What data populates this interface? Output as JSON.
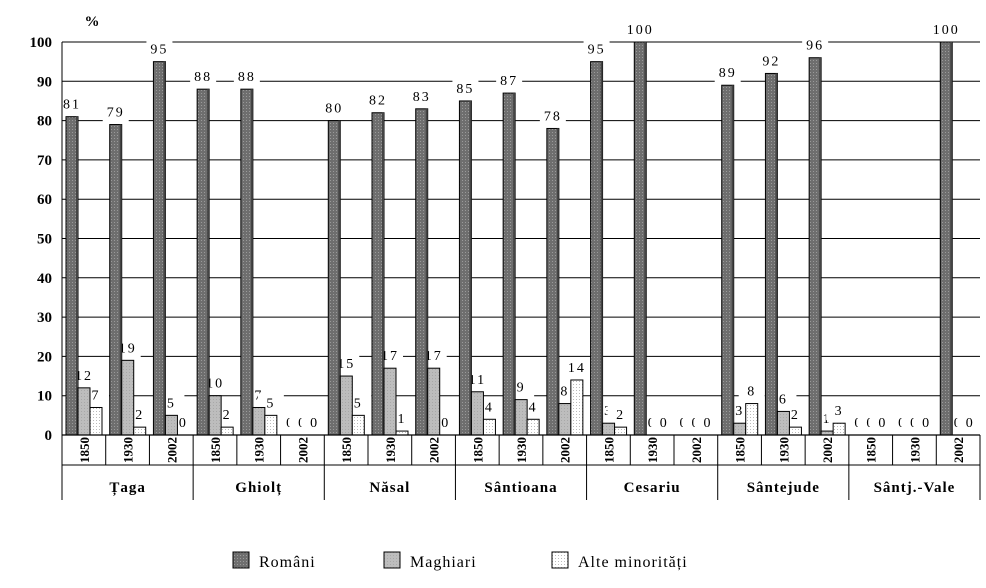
{
  "chart_data": {
    "type": "bar",
    "yunit": "%",
    "ylim": [
      0,
      100
    ],
    "yticks": [
      0,
      10,
      20,
      30,
      40,
      50,
      60,
      70,
      80,
      90,
      100
    ],
    "grid": true,
    "legend_position": "bottom",
    "series": [
      {
        "name": "Români",
        "color": "#7f7f7f"
      },
      {
        "name": "Maghiari",
        "color": "#c0c0c0"
      },
      {
        "name": "Alte minorități",
        "color": "#f4f4f4"
      }
    ],
    "groups": [
      {
        "name": "Țaga",
        "periods": [
          {
            "year": "1850",
            "values": [
              81,
              12,
              7
            ]
          },
          {
            "year": "1930",
            "values": [
              79,
              19,
              2
            ]
          },
          {
            "year": "2002",
            "values": [
              95,
              5,
              0
            ]
          }
        ]
      },
      {
        "name": "Ghiolț",
        "periods": [
          {
            "year": "1850",
            "values": [
              88,
              10,
              2
            ]
          },
          {
            "year": "1930",
            "values": [
              88,
              7,
              5
            ]
          },
          {
            "year": "2002",
            "values": [
              0,
              0,
              0
            ]
          }
        ]
      },
      {
        "name": "Năsal",
        "periods": [
          {
            "year": "1850",
            "values": [
              80,
              15,
              5
            ]
          },
          {
            "year": "1930",
            "values": [
              82,
              17,
              1
            ]
          },
          {
            "year": "2002",
            "values": [
              83,
              17,
              0
            ]
          }
        ]
      },
      {
        "name": "Sântioana",
        "periods": [
          {
            "year": "1850",
            "values": [
              85,
              11,
              4
            ]
          },
          {
            "year": "1930",
            "values": [
              87,
              9,
              4
            ]
          },
          {
            "year": "2002",
            "values": [
              78,
              8,
              14
            ]
          }
        ]
      },
      {
        "name": "Cesariu",
        "periods": [
          {
            "year": "1850",
            "values": [
              95,
              3,
              2
            ]
          },
          {
            "year": "1930",
            "values": [
              100,
              0,
              0
            ]
          },
          {
            "year": "2002",
            "values": [
              0,
              0,
              0
            ]
          }
        ]
      },
      {
        "name": "Sântejude",
        "periods": [
          {
            "year": "1850",
            "values": [
              89,
              3,
              8
            ]
          },
          {
            "year": "1930",
            "values": [
              92,
              6,
              2
            ]
          },
          {
            "year": "2002",
            "values": [
              96,
              1,
              3
            ]
          }
        ]
      },
      {
        "name": "Sântj.-Vale",
        "periods": [
          {
            "year": "1850",
            "values": [
              0,
              0,
              0
            ]
          },
          {
            "year": "1930",
            "values": [
              0,
              0,
              0
            ]
          },
          {
            "year": "2002",
            "values": [
              100,
              0,
              0
            ]
          }
        ]
      }
    ]
  }
}
